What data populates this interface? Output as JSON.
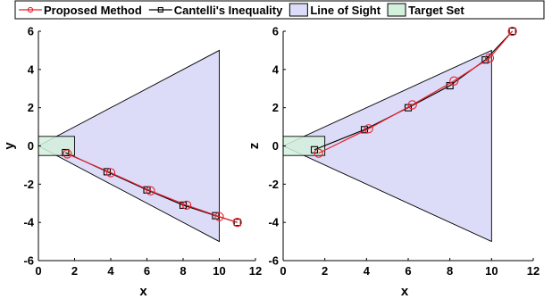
{
  "legend": {
    "entries": [
      {
        "label": "Proposed Method",
        "kind": "line-circle",
        "color": "#e8202a"
      },
      {
        "label": "Cantelli's Inequality",
        "kind": "line-square",
        "color": "#000000"
      },
      {
        "label": "Line of Sight",
        "kind": "patch",
        "fill": "#dcdcf8",
        "edge": "#000000"
      },
      {
        "label": "Target Set",
        "kind": "patch",
        "fill": "#d2f0dc",
        "edge": "#000000"
      }
    ]
  },
  "chart_data": [
    {
      "type": "line",
      "xlabel": "x",
      "ylabel": "y",
      "xlim": [
        0,
        12
      ],
      "ylim": [
        -6,
        6
      ],
      "xticks": [
        0,
        2,
        4,
        6,
        8,
        10,
        12
      ],
      "yticks": [
        -6,
        -4,
        -2,
        0,
        2,
        4,
        6
      ],
      "line_of_sight": [
        [
          0,
          0
        ],
        [
          10,
          5
        ],
        [
          10,
          -5
        ]
      ],
      "target_set": [
        [
          0,
          -0.5
        ],
        [
          2,
          -0.5
        ],
        [
          2,
          0.5
        ],
        [
          0,
          0.5
        ]
      ],
      "series": [
        {
          "name": "Proposed Method",
          "color": "#e8202a",
          "marker": "circle",
          "x": [
            1.6,
            4.0,
            6.2,
            8.2,
            10.0,
            11.0
          ],
          "y": [
            -0.42,
            -1.4,
            -2.35,
            -3.1,
            -3.7,
            -4.0
          ]
        },
        {
          "name": "Cantelli's Inequality",
          "color": "#000000",
          "marker": "square",
          "x": [
            1.5,
            3.8,
            6.0,
            8.0,
            9.8,
            11.0
          ],
          "y": [
            -0.35,
            -1.35,
            -2.3,
            -3.1,
            -3.65,
            -4.0
          ]
        }
      ]
    },
    {
      "type": "line",
      "xlabel": "x",
      "ylabel": "z",
      "xlim": [
        0,
        12
      ],
      "ylim": [
        -6,
        6
      ],
      "xticks": [
        0,
        2,
        4,
        6,
        8,
        10,
        12
      ],
      "yticks": [
        -6,
        -4,
        -2,
        0,
        2,
        4,
        6
      ],
      "line_of_sight": [
        [
          0,
          0
        ],
        [
          10,
          5
        ],
        [
          10,
          -5
        ]
      ],
      "target_set": [
        [
          0,
          -0.5
        ],
        [
          2,
          -0.5
        ],
        [
          2,
          0.5
        ],
        [
          0,
          0.5
        ]
      ],
      "series": [
        {
          "name": "Proposed Method",
          "color": "#e8202a",
          "marker": "circle",
          "x": [
            1.7,
            4.1,
            6.2,
            8.2,
            9.9,
            11.0
          ],
          "y": [
            -0.38,
            0.9,
            2.15,
            3.4,
            4.6,
            6.0
          ]
        },
        {
          "name": "Cantelli's Inequality",
          "color": "#000000",
          "marker": "square",
          "x": [
            1.5,
            3.9,
            6.0,
            8.0,
            9.7,
            11.0
          ],
          "y": [
            -0.2,
            0.85,
            2.0,
            3.15,
            4.5,
            6.0
          ]
        }
      ]
    }
  ]
}
